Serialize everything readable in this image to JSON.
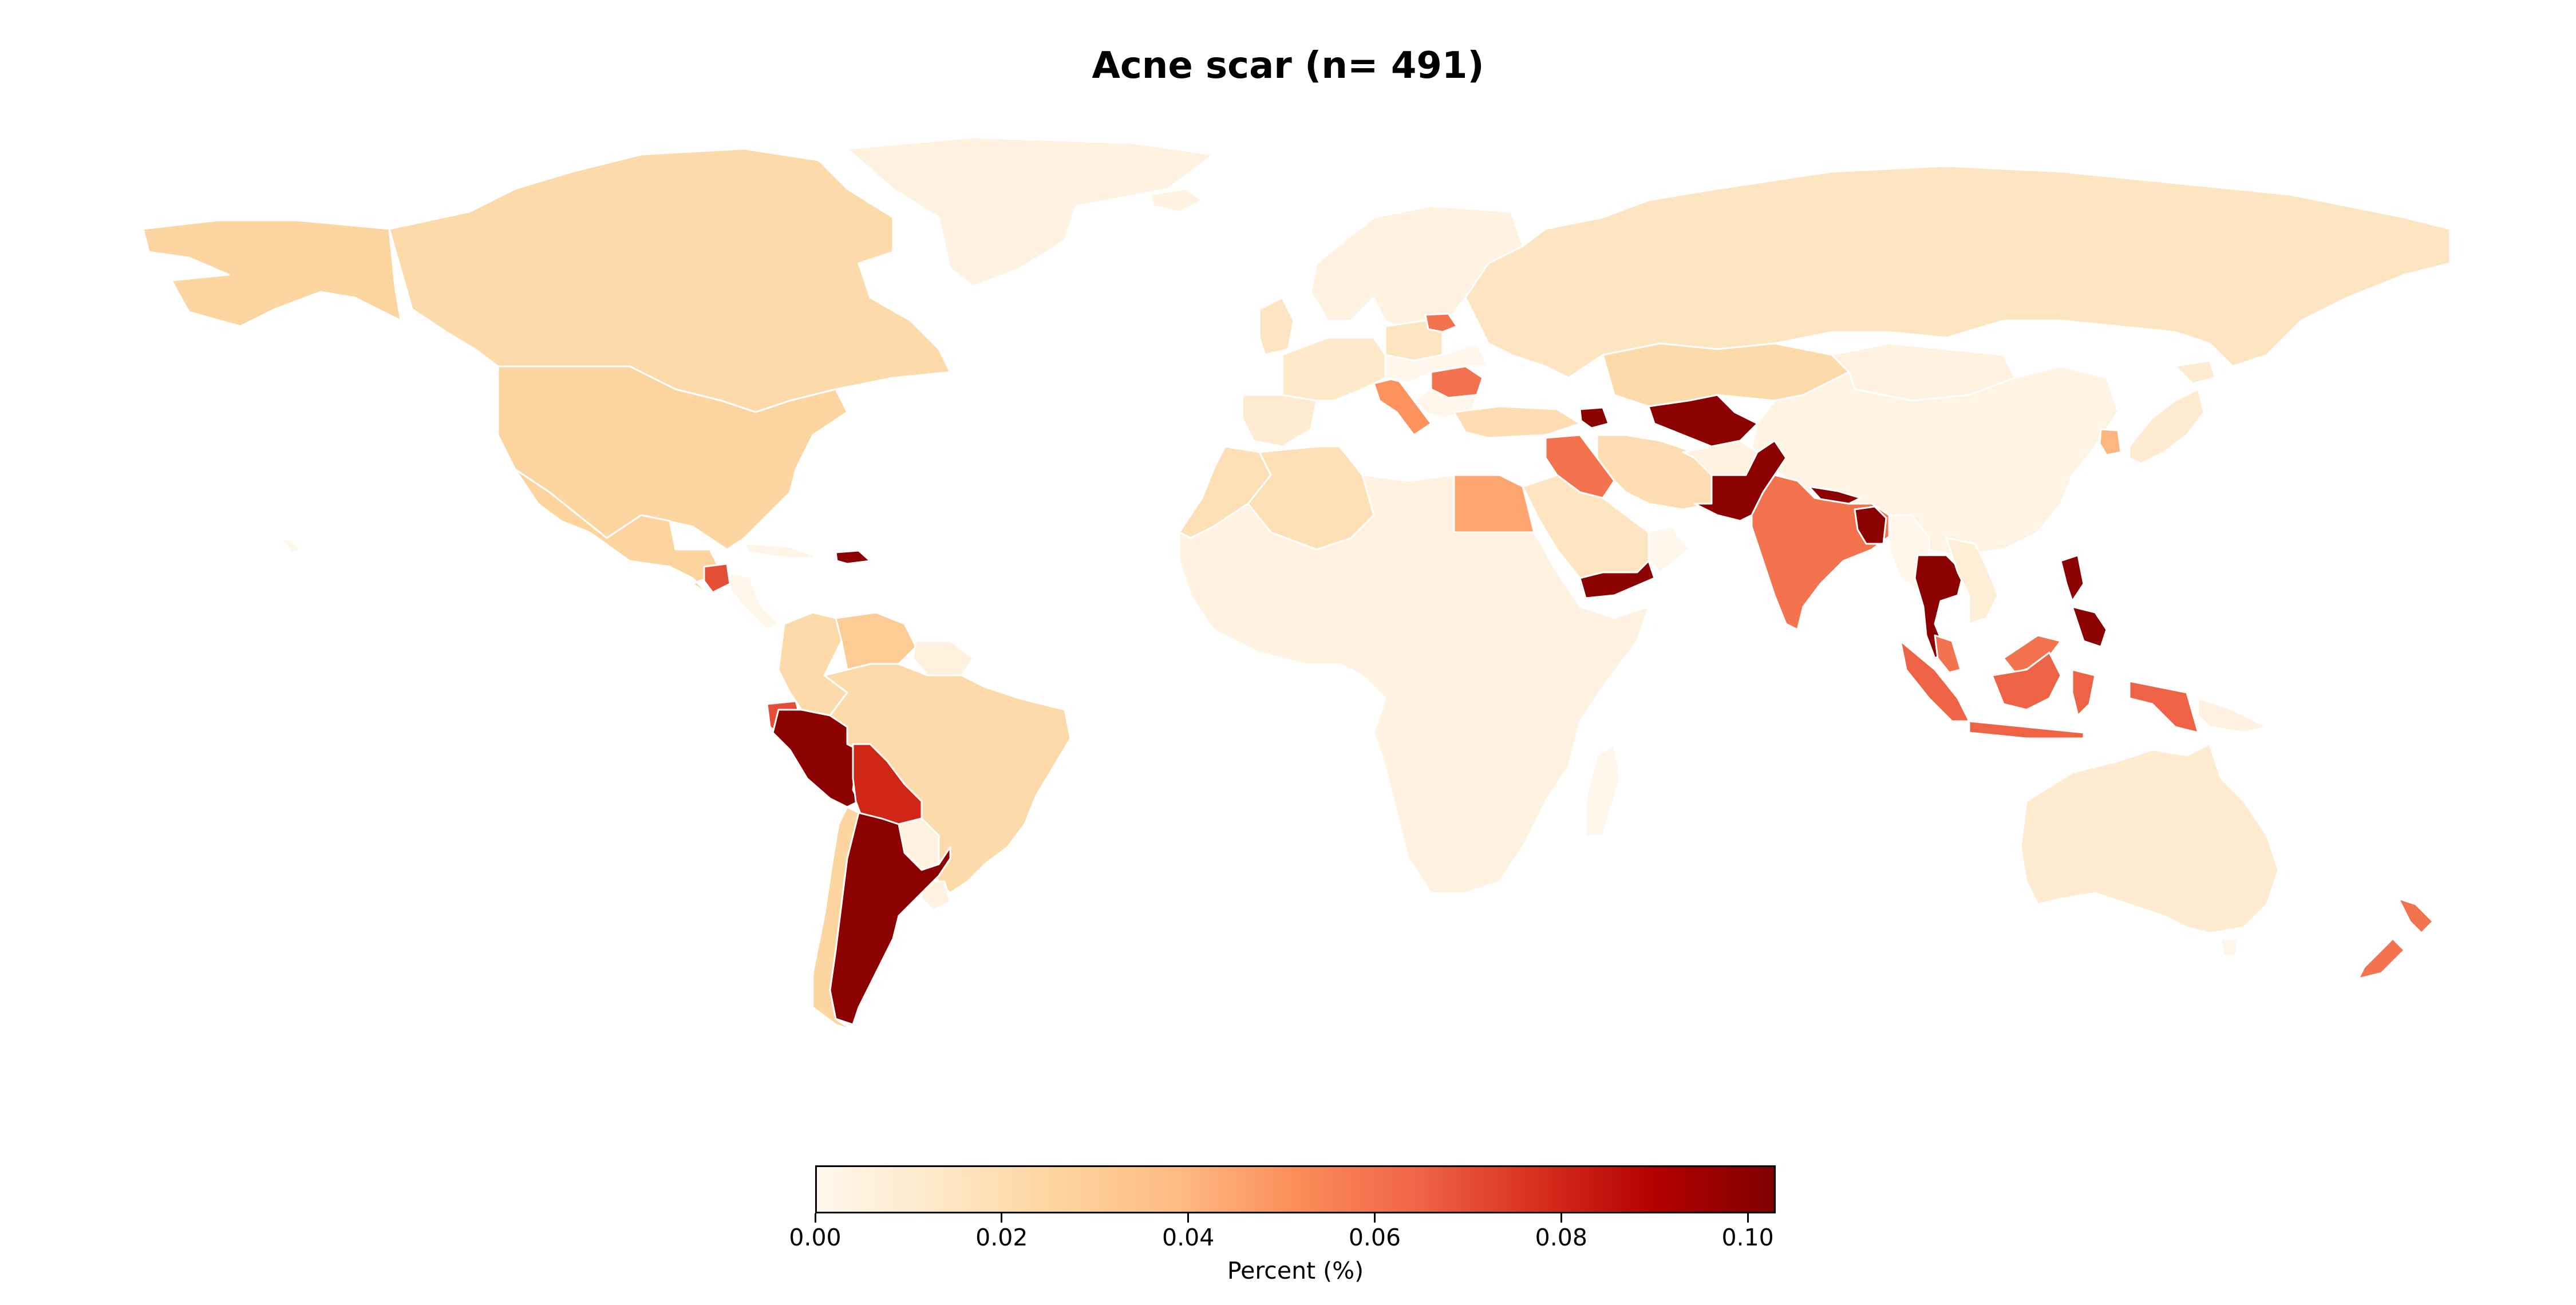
{
  "chart_data": {
    "type": "choropleth",
    "title": "Acne scar (n= 491)",
    "colorbar": {
      "label": "Percent (%)",
      "min": 0.0,
      "max": 0.103,
      "ticks": [
        "0.00",
        "0.02",
        "0.04",
        "0.06",
        "0.08",
        "0.10"
      ],
      "tick_values": [
        0.0,
        0.02,
        0.04,
        0.06,
        0.08,
        0.1
      ],
      "colormap": "OrRd",
      "stops": [
        "#fff7ec",
        "#fee8c8",
        "#fdd49e",
        "#fdbb84",
        "#fc8d59",
        "#ef6548",
        "#d7301f",
        "#b30000",
        "#7f0000"
      ]
    },
    "regions": [
      {
        "name": "Canada",
        "value": 0.022
      },
      {
        "name": "United States",
        "value": 0.025
      },
      {
        "name": "Alaska",
        "value": 0.025
      },
      {
        "name": "Greenland",
        "value": 0.004
      },
      {
        "name": "Mexico",
        "value": 0.026
      },
      {
        "name": "Guatemala",
        "value": 0.07
      },
      {
        "name": "Cuba",
        "value": 0.002
      },
      {
        "name": "Dominican Republic",
        "value": 0.1
      },
      {
        "name": "Colombia",
        "value": 0.022
      },
      {
        "name": "Venezuela",
        "value": 0.03
      },
      {
        "name": "Ecuador",
        "value": 0.07
      },
      {
        "name": "Peru",
        "value": 0.1
      },
      {
        "name": "Brazil",
        "value": 0.022
      },
      {
        "name": "Bolivia",
        "value": 0.08
      },
      {
        "name": "Chile",
        "value": 0.025
      },
      {
        "name": "Argentina",
        "value": 0.1
      },
      {
        "name": "Paraguay",
        "value": 0.004
      },
      {
        "name": "Uruguay",
        "value": 0.004
      },
      {
        "name": "Guyana",
        "value": 0.005
      },
      {
        "name": "Iceland",
        "value": 0.004
      },
      {
        "name": "United Kingdom",
        "value": 0.015
      },
      {
        "name": "Scandinavia",
        "value": 0.004
      },
      {
        "name": "Western Europe",
        "value": 0.012
      },
      {
        "name": "Poland",
        "value": 0.015
      },
      {
        "name": "Lithuania",
        "value": 0.06
      },
      {
        "name": "Romania",
        "value": 0.06
      },
      {
        "name": "Italy",
        "value": 0.05
      },
      {
        "name": "Spain",
        "value": 0.01
      },
      {
        "name": "Turkey",
        "value": 0.02
      },
      {
        "name": "Russia",
        "value": 0.015
      },
      {
        "name": "Kazakhstan",
        "value": 0.022
      },
      {
        "name": "Uzbekistan",
        "value": 0.1
      },
      {
        "name": "Azerbaijan",
        "value": 0.1
      },
      {
        "name": "Iraq",
        "value": 0.06
      },
      {
        "name": "Iran",
        "value": 0.02
      },
      {
        "name": "Saudi Arabia",
        "value": 0.015
      },
      {
        "name": "Yemen",
        "value": 0.1
      },
      {
        "name": "Egypt",
        "value": 0.045
      },
      {
        "name": "Algeria",
        "value": 0.018
      },
      {
        "name": "Morocco",
        "value": 0.018
      },
      {
        "name": "Africa (rest)",
        "value": 0.004
      },
      {
        "name": "Afghanistan",
        "value": 0.004
      },
      {
        "name": "Pakistan",
        "value": 0.1
      },
      {
        "name": "India",
        "value": 0.06
      },
      {
        "name": "Nepal",
        "value": 0.1
      },
      {
        "name": "Bangladesh",
        "value": 0.1
      },
      {
        "name": "China",
        "value": 0.003
      },
      {
        "name": "Mongolia",
        "value": 0.004
      },
      {
        "name": "South Korea",
        "value": 0.04
      },
      {
        "name": "Japan",
        "value": 0.01
      },
      {
        "name": "Thailand",
        "value": 0.1
      },
      {
        "name": "Vietnam",
        "value": 0.008
      },
      {
        "name": "Malaysia",
        "value": 0.06
      },
      {
        "name": "Indonesia",
        "value": 0.065
      },
      {
        "name": "Philippines",
        "value": 0.1
      },
      {
        "name": "Papua New Guinea",
        "value": 0.004
      },
      {
        "name": "Australia",
        "value": 0.01
      },
      {
        "name": "New Zealand",
        "value": 0.06
      }
    ]
  }
}
